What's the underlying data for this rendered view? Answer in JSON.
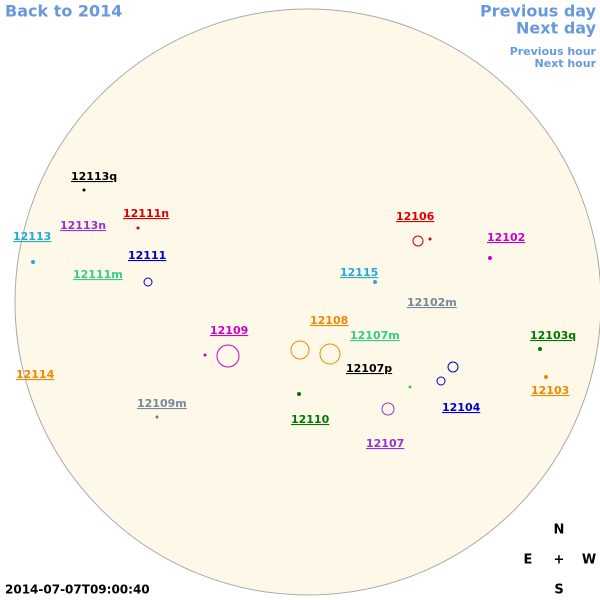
{
  "nav": {
    "back": "Back to 2014",
    "previous_day": "Previous day",
    "next_day": "Next day",
    "previous_hour": "Previous hour",
    "next_hour": "Next hour"
  },
  "regions": [
    "12113q",
    "12111n",
    "12113n",
    "12113",
    "12111",
    "12111m",
    "12106",
    "12102",
    "12115",
    "12102m",
    "12109",
    "12108",
    "12107m",
    "12103q",
    "12107p",
    "12114",
    "12103",
    "12109m",
    "12104",
    "12110",
    "12107"
  ],
  "compass": {
    "north": "N",
    "east": "E",
    "center": "+",
    "west": "W",
    "south": "S"
  },
  "timestamp": "2014-07-07T09:00:40"
}
